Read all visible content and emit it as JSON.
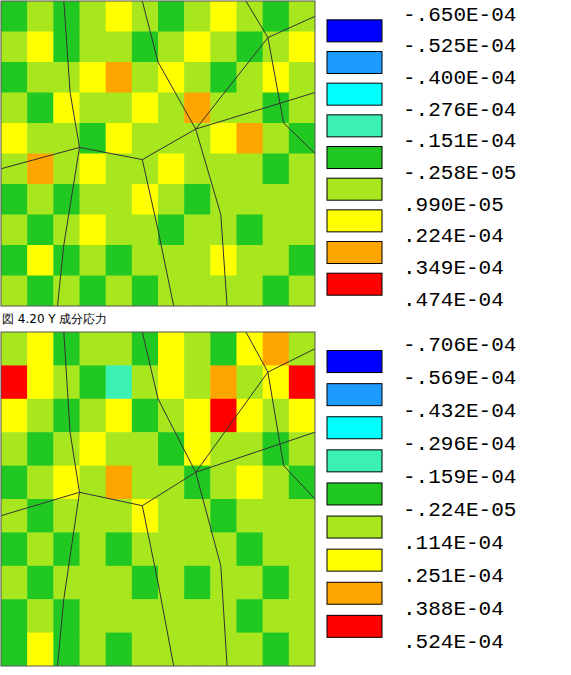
{
  "chart_data": [
    {
      "type": "heatmap",
      "title": "図 4.20 Y 成分応力",
      "tick_labels": false,
      "cells": [
        [
          -9e-06,
          4e-06,
          -9e-06,
          4e-06,
          1.6e-05,
          4e-06,
          -9e-06,
          4e-06,
          1.6e-05,
          4e-06,
          -9e-06,
          4e-06
        ],
        [
          4e-06,
          1.6e-05,
          -9e-06,
          4e-06,
          4e-06,
          -9e-06,
          4e-06,
          1.6e-05,
          4e-06,
          -9e-06,
          4e-06,
          1.6e-05
        ],
        [
          -9e-06,
          4e-06,
          4e-06,
          1.6e-05,
          2.9e-05,
          4e-06,
          1.6e-05,
          4e-06,
          -9e-06,
          4e-06,
          1.6e-05,
          4e-06
        ],
        [
          4e-06,
          -9e-06,
          1.6e-05,
          4e-06,
          4e-06,
          1.6e-05,
          4e-06,
          2.9e-05,
          4e-06,
          4e-06,
          -9e-06,
          4e-06
        ],
        [
          1.6e-05,
          4e-06,
          4e-06,
          -9e-06,
          1.6e-05,
          4e-06,
          4e-06,
          4e-06,
          1.6e-05,
          2.9e-05,
          4e-06,
          -9e-06
        ],
        [
          4e-06,
          2.9e-05,
          4e-06,
          1.6e-05,
          4e-06,
          4e-06,
          1.6e-05,
          4e-06,
          4e-06,
          4e-06,
          -9e-06,
          4e-06
        ],
        [
          -9e-06,
          4e-06,
          -9e-06,
          4e-06,
          4e-06,
          1.6e-05,
          4e-06,
          -9e-06,
          4e-06,
          4e-06,
          4e-06,
          4e-06
        ],
        [
          4e-06,
          -9e-06,
          4e-06,
          1.6e-05,
          4e-06,
          4e-06,
          -9e-06,
          4e-06,
          4e-06,
          -9e-06,
          4e-06,
          4e-06
        ],
        [
          -9e-06,
          1.6e-05,
          -9e-06,
          4e-06,
          -9e-06,
          4e-06,
          4e-06,
          4e-06,
          1.6e-05,
          4e-06,
          4e-06,
          -9e-06
        ],
        [
          4e-06,
          -9e-06,
          4e-06,
          -9e-06,
          4e-06,
          -9e-06,
          4e-06,
          4e-06,
          4e-06,
          4e-06,
          -9e-06,
          4e-06
        ]
      ],
      "colorbar": {
        "range": [
          -6.5e-05,
          4.74e-05
        ],
        "ticks": [
          {
            "value": -6.5e-05,
            "label": "-.650E-04"
          },
          {
            "value": -5.25e-05,
            "label": "-.525E-04"
          },
          {
            "value": -4e-05,
            "label": "-.400E-04"
          },
          {
            "value": -2.76e-05,
            "label": "-.276E-04"
          },
          {
            "value": -1.51e-05,
            "label": "-.151E-04"
          },
          {
            "value": -2.58e-06,
            "label": "-.258E-05"
          },
          {
            "value": 9.9e-06,
            "label": ".990E-05"
          },
          {
            "value": 2.24e-05,
            "label": ".224E-04"
          },
          {
            "value": 3.49e-05,
            "label": ".349E-04"
          },
          {
            "value": 4.74e-05,
            "label": ".474E-04"
          }
        ],
        "colors": [
          "#0000ff",
          "#1e9bff",
          "#00ffff",
          "#3cf0b4",
          "#22c822",
          "#a8e61e",
          "#ffff00",
          "#ffa500",
          "#ff0000"
        ]
      }
    },
    {
      "type": "heatmap",
      "tick_labels": false,
      "cells": [
        [
          4e-06,
          1.8e-05,
          -9e-06,
          4e-06,
          4e-06,
          -9e-06,
          1.8e-05,
          4e-06,
          -9e-06,
          1.8e-05,
          3.2e-05,
          4e-06
        ],
        [
          4.5e-05,
          1.8e-05,
          4e-06,
          -9e-06,
          -2.2e-05,
          4e-06,
          1.8e-05,
          4e-06,
          3.2e-05,
          4e-06,
          1.8e-05,
          4.5e-05
        ],
        [
          1.8e-05,
          4e-06,
          -9e-06,
          4e-06,
          1.8e-05,
          -9e-06,
          4e-06,
          1.8e-05,
          4.5e-05,
          1.8e-05,
          4e-06,
          1.8e-05
        ],
        [
          4e-06,
          -9e-06,
          4e-06,
          1.8e-05,
          4e-06,
          4e-06,
          -9e-06,
          1.8e-05,
          4e-06,
          4e-06,
          -9e-06,
          4e-06
        ],
        [
          -9e-06,
          4e-06,
          1.8e-05,
          4e-06,
          3.2e-05,
          4e-06,
          4e-06,
          -9e-06,
          4e-06,
          1.8e-05,
          4e-06,
          -9e-06
        ],
        [
          4e-06,
          -9e-06,
          4e-06,
          4e-06,
          4e-06,
          1.8e-05,
          4e-06,
          4e-06,
          -9e-06,
          4e-06,
          4e-06,
          4e-06
        ],
        [
          -9e-06,
          4e-06,
          -9e-06,
          4e-06,
          -9e-06,
          4e-06,
          4e-06,
          4e-06,
          4e-06,
          -9e-06,
          4e-06,
          4e-06
        ],
        [
          4e-06,
          -9e-06,
          4e-06,
          4e-06,
          4e-06,
          -9e-06,
          4e-06,
          -9e-06,
          4e-06,
          4e-06,
          -9e-06,
          4e-06
        ],
        [
          -9e-06,
          4e-06,
          -9e-06,
          4e-06,
          4e-06,
          4e-06,
          4e-06,
          4e-06,
          4e-06,
          -9e-06,
          4e-06,
          4e-06
        ],
        [
          -9e-06,
          1.8e-05,
          -9e-06,
          4e-06,
          -9e-06,
          4e-06,
          4e-06,
          4e-06,
          4e-06,
          4e-06,
          -9e-06,
          4e-06
        ]
      ],
      "colorbar": {
        "range": [
          -7.06e-05,
          5.24e-05
        ],
        "ticks": [
          {
            "value": -7.06e-05,
            "label": "-.706E-04"
          },
          {
            "value": -5.69e-05,
            "label": "-.569E-04"
          },
          {
            "value": -4.32e-05,
            "label": "-.432E-04"
          },
          {
            "value": -2.96e-05,
            "label": "-.296E-04"
          },
          {
            "value": -1.59e-05,
            "label": "-.159E-04"
          },
          {
            "value": -2.24e-06,
            "label": "-.224E-05"
          },
          {
            "value": 1.14e-05,
            "label": ".114E-04"
          },
          {
            "value": 2.51e-05,
            "label": ".251E-04"
          },
          {
            "value": 3.88e-05,
            "label": ".388E-04"
          },
          {
            "value": 5.24e-05,
            "label": ".524E-04"
          }
        ],
        "colors": [
          "#0000ff",
          "#1e9bff",
          "#00ffff",
          "#3cf0b4",
          "#22c822",
          "#a8e61e",
          "#ffff00",
          "#ffa500",
          "#ff0000"
        ]
      }
    }
  ]
}
